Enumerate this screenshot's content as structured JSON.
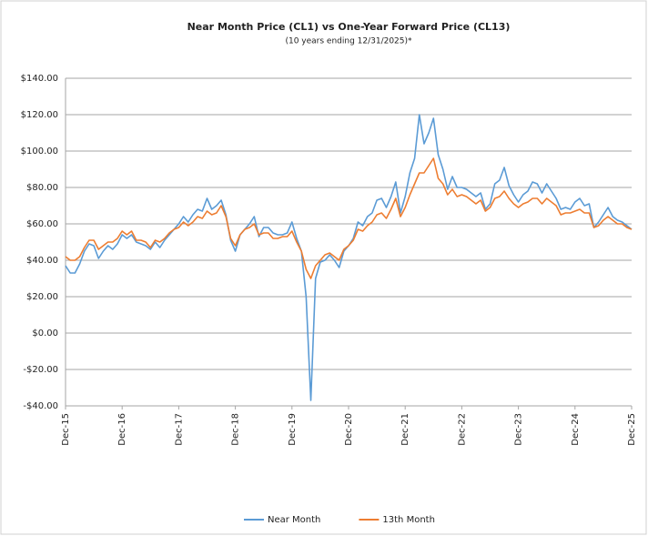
{
  "chart_data": {
    "type": "line",
    "title": "Near Month Price (CL1) vs One-Year Forward Price (CL13)",
    "subtitle": "(10 years ending 12/31/2025)*",
    "categories": [
      "Dec-15",
      null,
      null,
      null,
      null,
      null,
      null,
      null,
      null,
      null,
      null,
      null,
      "Dec-16",
      null,
      null,
      null,
      null,
      null,
      null,
      null,
      null,
      null,
      null,
      null,
      "Dec-17",
      null,
      null,
      null,
      null,
      null,
      null,
      null,
      null,
      null,
      null,
      null,
      "Dec-18",
      null,
      null,
      null,
      null,
      null,
      null,
      null,
      null,
      null,
      null,
      null,
      "Dec-19",
      null,
      null,
      null,
      null,
      null,
      null,
      null,
      null,
      null,
      null,
      null,
      "Dec-20",
      null,
      null,
      null,
      null,
      null,
      null,
      null,
      null,
      null,
      null,
      null,
      "Dec-21",
      null,
      null,
      null,
      null,
      null,
      null,
      null,
      null,
      null,
      null,
      null,
      "Dec-22",
      null,
      null,
      null,
      null,
      null,
      null,
      null,
      null,
      null,
      null,
      null,
      "Dec-23",
      null,
      null,
      null,
      null,
      null,
      null,
      null,
      null,
      null,
      null,
      null,
      "Dec-24",
      null,
      null,
      null,
      null,
      null,
      null,
      null,
      null,
      null,
      null,
      null,
      "Dec-25"
    ],
    "series": [
      {
        "name": "Near Month",
        "color": "#5b9bd5",
        "values": [
          37,
          33,
          33,
          38,
          45,
          49,
          48,
          41,
          45,
          48,
          46,
          49,
          54,
          52,
          54,
          50,
          49,
          48,
          46,
          50,
          47,
          51,
          54,
          57,
          60,
          64,
          61,
          65,
          68,
          67,
          74,
          68,
          70,
          73,
          65,
          51,
          45,
          54,
          57,
          60,
          64,
          53,
          58,
          58,
          55,
          54,
          54,
          55,
          61,
          52,
          45,
          20,
          -37,
          30,
          39,
          40,
          43,
          40,
          36,
          45,
          48,
          52,
          61,
          59,
          64,
          66,
          73,
          74,
          69,
          75,
          83,
          66,
          75,
          88,
          96,
          120,
          104,
          110,
          118,
          98,
          90,
          79,
          86,
          80,
          80,
          79,
          77,
          75,
          77,
          68,
          71,
          82,
          84,
          91,
          81,
          76,
          72,
          76,
          78,
          83,
          82,
          77,
          82,
          78,
          74,
          68,
          69,
          68,
          72,
          74,
          70,
          71,
          58,
          61,
          65,
          69,
          64,
          62,
          61,
          59,
          57
        ]
      },
      {
        "name": "13th Month",
        "color": "#ed7d31",
        "values": [
          42,
          40,
          40,
          42,
          47,
          51,
          51,
          46,
          48,
          50,
          50,
          52,
          56,
          54,
          56,
          51,
          51,
          50,
          47,
          51,
          50,
          52,
          55,
          57,
          58,
          61,
          59,
          61,
          64,
          63,
          67,
          65,
          66,
          70,
          64,
          52,
          48,
          54,
          57,
          58,
          60,
          54,
          55,
          55,
          52,
          52,
          53,
          53,
          56,
          50,
          45,
          35,
          30,
          37,
          40,
          43,
          44,
          42,
          40,
          46,
          48,
          51,
          57,
          56,
          59,
          61,
          65,
          66,
          63,
          68,
          74,
          64,
          69,
          76,
          82,
          88,
          88,
          92,
          96,
          85,
          82,
          76,
          79,
          75,
          76,
          75,
          73,
          71,
          73,
          67,
          69,
          74,
          75,
          78,
          74,
          71,
          69,
          71,
          72,
          74,
          74,
          71,
          74,
          72,
          70,
          65,
          66,
          66,
          67,
          68,
          66,
          66,
          58,
          59,
          62,
          64,
          62,
          60,
          60,
          58,
          57
        ]
      }
    ],
    "ylim": [
      -40,
      140
    ],
    "yticks": [
      {
        "value": -40,
        "label": "-$40.00"
      },
      {
        "value": -20,
        "label": "-$20.00"
      },
      {
        "value": 0,
        "label": "$0.00"
      },
      {
        "value": 20,
        "label": "$20.00"
      },
      {
        "value": 40,
        "label": "$40.00"
      },
      {
        "value": 60,
        "label": "$60.00"
      },
      {
        "value": 80,
        "label": "$80.00"
      },
      {
        "value": 100,
        "label": "$100.00"
      },
      {
        "value": 120,
        "label": "$120.00"
      },
      {
        "value": 140,
        "label": "$140.00"
      }
    ],
    "grid": true,
    "legend": "bottom"
  }
}
